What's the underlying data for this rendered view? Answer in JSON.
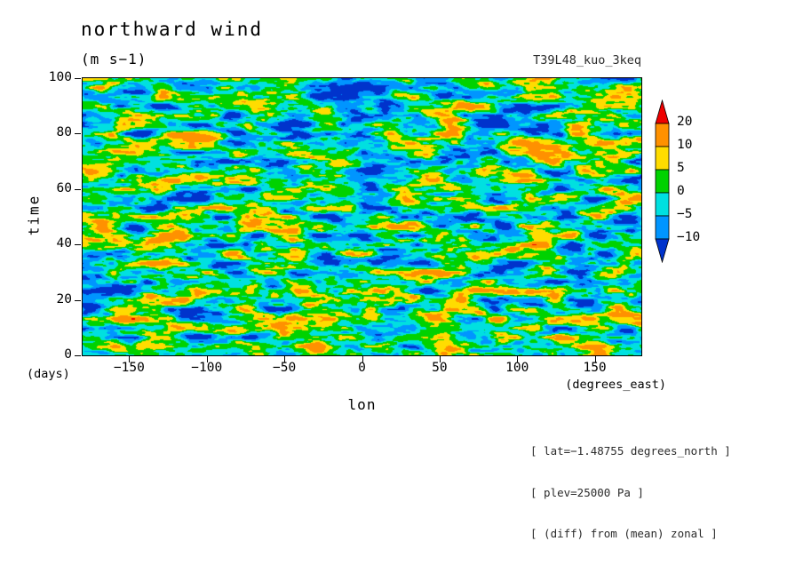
{
  "title": "northward wind",
  "units_label": "(m s−1)",
  "experiment": "T39L48_kuo_3keq",
  "axes": {
    "y_title": "time",
    "y_units": "(days)",
    "x_title": "lon",
    "x_units": "(degrees_east)"
  },
  "annotations": [
    "[ lat=−1.48755 degrees_north ]",
    "[ plev=25000 Pa ]",
    "[ (diff) from (mean) zonal ]"
  ],
  "chart_data": {
    "type": "heatmap",
    "title": "northward wind",
    "units": "m s−1",
    "experiment": "T39L48_kuo_3keq",
    "xlabel": "lon",
    "x_units": "degrees_east",
    "ylabel": "time",
    "y_units": "days",
    "x_range": [
      -180,
      180
    ],
    "y_range": [
      0,
      100
    ],
    "x_ticks": [
      {
        "value": -150,
        "label": "−150"
      },
      {
        "value": -100,
        "label": "−100"
      },
      {
        "value": -50,
        "label": "−50"
      },
      {
        "value": 0,
        "label": "0"
      },
      {
        "value": 50,
        "label": "50"
      },
      {
        "value": 100,
        "label": "100"
      },
      {
        "value": 150,
        "label": "150"
      }
    ],
    "y_ticks": [
      {
        "value": 0,
        "label": "0"
      },
      {
        "value": 20,
        "label": "20"
      },
      {
        "value": 40,
        "label": "40"
      },
      {
        "value": 60,
        "label": "60"
      },
      {
        "value": 80,
        "label": "80"
      },
      {
        "value": 100,
        "label": "100"
      }
    ],
    "levels": [
      -10,
      -5,
      0,
      5,
      10,
      20
    ],
    "band_colors": [
      "#0033cc",
      "#0095ff",
      "#00e0e0",
      "#00d200",
      "#ffdc00",
      "#ff9100",
      "#ee0000"
    ],
    "colorbar_labels": [
      "20",
      "10",
      "5",
      "0",
      "−5",
      "−10"
    ],
    "legend_position": "right",
    "grid": false,
    "field_generator": {
      "seed": 1337,
      "tilt": -0.12,
      "scale": 12.5,
      "octaves": [
        {
          "fx": 18,
          "fy": 30,
          "amp": 1.0
        },
        {
          "fx": 36,
          "fy": 60,
          "amp": 0.6
        },
        {
          "fx": 72,
          "fy": 120,
          "amp": 0.35
        }
      ]
    }
  }
}
